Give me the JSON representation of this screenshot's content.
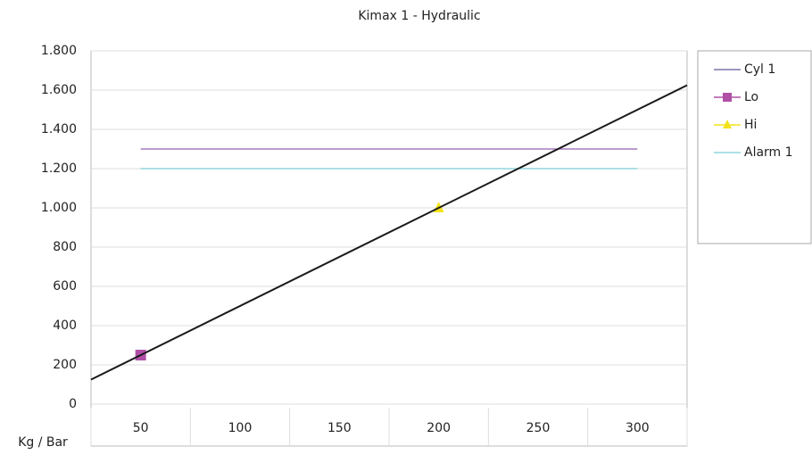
{
  "chart_data": {
    "type": "line",
    "title": "Kimax 1 - Hydraulic",
    "x_label": "Kg / Bar",
    "xlim": [
      25,
      325
    ],
    "xticks": [
      50,
      100,
      150,
      200,
      250,
      300
    ],
    "x_grid_lines": [
      25,
      75,
      125,
      175,
      225,
      275,
      325
    ],
    "ylim": [
      0,
      1800
    ],
    "yticks": [
      0,
      {
        "value": 200,
        "label": "200"
      },
      {
        "value": 400,
        "label": "400"
      },
      {
        "value": 600,
        "label": "600"
      },
      {
        "value": 800,
        "label": "800"
      },
      {
        "value": 1000,
        "label": "1.000"
      },
      {
        "value": 1200,
        "label": "1.200"
      },
      {
        "value": 1400,
        "label": "1.400"
      },
      {
        "value": 1600,
        "label": "1.600"
      },
      {
        "value": 1800,
        "label": "1.800"
      }
    ],
    "grid": true,
    "legend": "right",
    "series": [
      {
        "name": "Cyl 1",
        "color": "#a77bbf",
        "legend_color": "#7e74a8",
        "marker": "none",
        "x": [
          50,
          300
        ],
        "values": [
          1300,
          1300
        ]
      },
      {
        "name": "Lo",
        "color": "#b04fa6",
        "marker": "square",
        "x": [
          50
        ],
        "values": [
          250
        ]
      },
      {
        "name": "Hi",
        "color": "#f2e31b",
        "marker": "triangle",
        "x": [
          200
        ],
        "values": [
          1000
        ]
      },
      {
        "name": "Alarm 1",
        "color": "#8fd6dd",
        "marker": "none",
        "x": [
          50,
          300
        ],
        "values": [
          1200,
          1200
        ]
      }
    ],
    "trend_line": {
      "color": "#1a1a1a",
      "x": [
        25,
        325
      ],
      "values": [
        125,
        1625
      ]
    }
  }
}
